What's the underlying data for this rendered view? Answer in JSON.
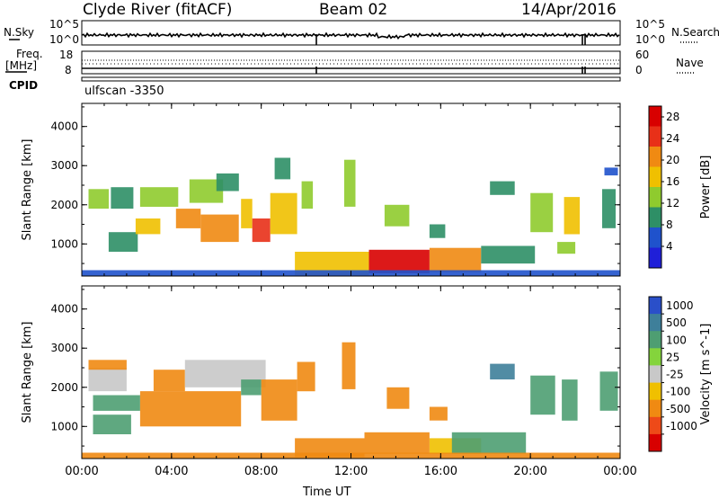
{
  "header": {
    "station": "Clyde River (fitACF)",
    "beam": "Beam 02",
    "date": "14/Apr/2016"
  },
  "top_panels": {
    "nsky_label": "N.Sky",
    "nsky_ticks": [
      "10^5",
      "10^0"
    ],
    "nsearch_label": "N.Search",
    "freq_label_1": "Freq.",
    "freq_label_2": "[MHz]",
    "freq_ticks": [
      "18",
      "8"
    ],
    "nave_label": "Nave",
    "nave_ticks": [
      "60",
      "0"
    ],
    "cpid_label": "CPID",
    "cpid_value": "ulfscan -3350"
  },
  "chart_data": [
    {
      "type": "heatmap",
      "title": "",
      "xlabel": "Time UT",
      "ylabel": "Slant Range [km]",
      "x_ticks": [
        "00:00",
        "04:00",
        "08:00",
        "12:00",
        "16:00",
        "20:00",
        "00:00"
      ],
      "x_range_hours": [
        0,
        24
      ],
      "y_ticks": [
        1000,
        2000,
        3000,
        4000
      ],
      "ylim": [
        180,
        4590
      ],
      "colorbar_label": "Power [dB]",
      "colorbar_ticks": [
        4,
        8,
        12,
        16,
        20,
        24,
        28
      ],
      "colorbar_range": [
        0,
        30
      ],
      "colorbar_colors": [
        "#1f1fd8",
        "#1f52cc",
        "#2e8f66",
        "#8fcb2e",
        "#f0c000",
        "#f08a12",
        "#e83018",
        "#d80000"
      ],
      "grid": false,
      "regions": [
        {
          "x": [
            0.3,
            1.2
          ],
          "y": [
            1900,
            2400
          ],
          "value": 14
        },
        {
          "x": [
            1.2,
            2.5
          ],
          "y": [
            800,
            1300
          ],
          "value": 8
        },
        {
          "x": [
            1.3,
            2.3
          ],
          "y": [
            1900,
            2450
          ],
          "value": 10
        },
        {
          "x": [
            2.4,
            3.5
          ],
          "y": [
            1250,
            1650
          ],
          "value": 18
        },
        {
          "x": [
            2.6,
            4.3
          ],
          "y": [
            1950,
            2450
          ],
          "value": 12
        },
        {
          "x": [
            4.2,
            5.3
          ],
          "y": [
            1400,
            1900
          ],
          "value": 22
        },
        {
          "x": [
            4.8,
            6.3
          ],
          "y": [
            2050,
            2650
          ],
          "value": 14
        },
        {
          "x": [
            5.3,
            7.0
          ],
          "y": [
            1050,
            1750
          ],
          "value": 22
        },
        {
          "x": [
            6.0,
            7.0
          ],
          "y": [
            2350,
            2800
          ],
          "value": 10
        },
        {
          "x": [
            7.1,
            7.6
          ],
          "y": [
            1400,
            2150
          ],
          "value": 18
        },
        {
          "x": [
            7.6,
            8.4
          ],
          "y": [
            1050,
            1650
          ],
          "value": 26
        },
        {
          "x": [
            8.4,
            9.6
          ],
          "y": [
            1250,
            2300
          ],
          "value": 16
        },
        {
          "x": [
            8.6,
            9.3
          ],
          "y": [
            2650,
            3200
          ],
          "value": 10
        },
        {
          "x": [
            9.8,
            10.3
          ],
          "y": [
            1900,
            2600
          ],
          "value": 12
        },
        {
          "x": [
            11.7,
            12.2
          ],
          "y": [
            1950,
            3150
          ],
          "value": 12
        },
        {
          "x": [
            9.5,
            12.8
          ],
          "y": [
            200,
            800
          ],
          "value": 16
        },
        {
          "x": [
            12.8,
            15.5
          ],
          "y": [
            250,
            850
          ],
          "value": 27
        },
        {
          "x": [
            15.5,
            17.8
          ],
          "y": [
            280,
            900
          ],
          "value": 22
        },
        {
          "x": [
            17.8,
            20.2
          ],
          "y": [
            500,
            950
          ],
          "value": 10
        },
        {
          "x": [
            13.5,
            14.6
          ],
          "y": [
            1450,
            2000
          ],
          "value": 14
        },
        {
          "x": [
            15.5,
            16.2
          ],
          "y": [
            1150,
            1500
          ],
          "value": 10
        },
        {
          "x": [
            18.2,
            19.3
          ],
          "y": [
            2250,
            2600
          ],
          "value": 10
        },
        {
          "x": [
            20.0,
            21.0
          ],
          "y": [
            1300,
            2300
          ],
          "value": 12
        },
        {
          "x": [
            21.5,
            22.2
          ],
          "y": [
            1250,
            2200
          ],
          "value": 18
        },
        {
          "x": [
            21.2,
            22.0
          ],
          "y": [
            750,
            1050
          ],
          "value": 12
        },
        {
          "x": [
            23.2,
            23.8
          ],
          "y": [
            1400,
            2400
          ],
          "value": 8
        },
        {
          "x": [
            23.3,
            23.9
          ],
          "y": [
            2750,
            2950
          ],
          "value": 6
        },
        {
          "x": [
            0.0,
            24.0
          ],
          "y": [
            180,
            330
          ],
          "value": 6
        }
      ]
    },
    {
      "type": "heatmap",
      "title": "",
      "xlabel": "Time UT",
      "ylabel": "Slant Range [km]",
      "x_ticks": [
        "00:00",
        "04:00",
        "08:00",
        "12:00",
        "16:00",
        "20:00",
        "00:00"
      ],
      "x_range_hours": [
        0,
        24
      ],
      "y_ticks": [
        1000,
        2000,
        3000,
        4000
      ],
      "ylim": [
        180,
        4590
      ],
      "colorbar_label": "Velocity [m s^-1]",
      "colorbar_ticks": [
        1000,
        500,
        100,
        25,
        -25,
        -100,
        -500,
        -1000
      ],
      "colorbar_colors": [
        "#2a4fc9",
        "#3e7f9a",
        "#4e9e72",
        "#84d43c",
        "#c8c8c8",
        "#f0c000",
        "#f08a12",
        "#ee4a18",
        "#d80000"
      ],
      "grid": false,
      "regions": [
        {
          "x": [
            0.3,
            2.0
          ],
          "y": [
            1900,
            2500
          ],
          "value": 0
        },
        {
          "x": [
            0.3,
            2.0
          ],
          "y": [
            2450,
            2700
          ],
          "value": -150
        },
        {
          "x": [
            0.5,
            2.6
          ],
          "y": [
            1400,
            1800
          ],
          "value": 150
        },
        {
          "x": [
            0.5,
            2.2
          ],
          "y": [
            800,
            1300
          ],
          "value": 300
        },
        {
          "x": [
            2.6,
            7.1
          ],
          "y": [
            1000,
            1900
          ],
          "value": -300
        },
        {
          "x": [
            3.2,
            4.6
          ],
          "y": [
            1900,
            2450
          ],
          "value": -300
        },
        {
          "x": [
            4.6,
            8.2
          ],
          "y": [
            2000,
            2700
          ],
          "value": 0
        },
        {
          "x": [
            7.1,
            8.0
          ],
          "y": [
            1800,
            2200
          ],
          "value": 150
        },
        {
          "x": [
            8.0,
            9.6
          ],
          "y": [
            1150,
            2200
          ],
          "value": -300
        },
        {
          "x": [
            9.6,
            10.4
          ],
          "y": [
            1900,
            2650
          ],
          "value": -300
        },
        {
          "x": [
            11.6,
            12.2
          ],
          "y": [
            1950,
            3150
          ],
          "value": -300
        },
        {
          "x": [
            9.5,
            12.6
          ],
          "y": [
            220,
            700
          ],
          "value": -150
        },
        {
          "x": [
            12.6,
            15.5
          ],
          "y": [
            300,
            850
          ],
          "value": -300
        },
        {
          "x": [
            15.5,
            17.8
          ],
          "y": [
            300,
            700
          ],
          "value": -100
        },
        {
          "x": [
            16.5,
            19.8
          ],
          "y": [
            300,
            850
          ],
          "value": 150
        },
        {
          "x": [
            13.6,
            14.6
          ],
          "y": [
            1450,
            2000
          ],
          "value": -300
        },
        {
          "x": [
            15.5,
            16.3
          ],
          "y": [
            1150,
            1500
          ],
          "value": -300
        },
        {
          "x": [
            18.2,
            19.3
          ],
          "y": [
            2200,
            2600
          ],
          "value": 700
        },
        {
          "x": [
            20.0,
            21.1
          ],
          "y": [
            1300,
            2300
          ],
          "value": 250
        },
        {
          "x": [
            21.4,
            22.1
          ],
          "y": [
            1150,
            2200
          ],
          "value": 250
        },
        {
          "x": [
            23.1,
            23.9
          ],
          "y": [
            1400,
            2400
          ],
          "value": 250
        },
        {
          "x": [
            0.0,
            24.0
          ],
          "y": [
            180,
            330
          ],
          "value": -150
        }
      ]
    }
  ]
}
